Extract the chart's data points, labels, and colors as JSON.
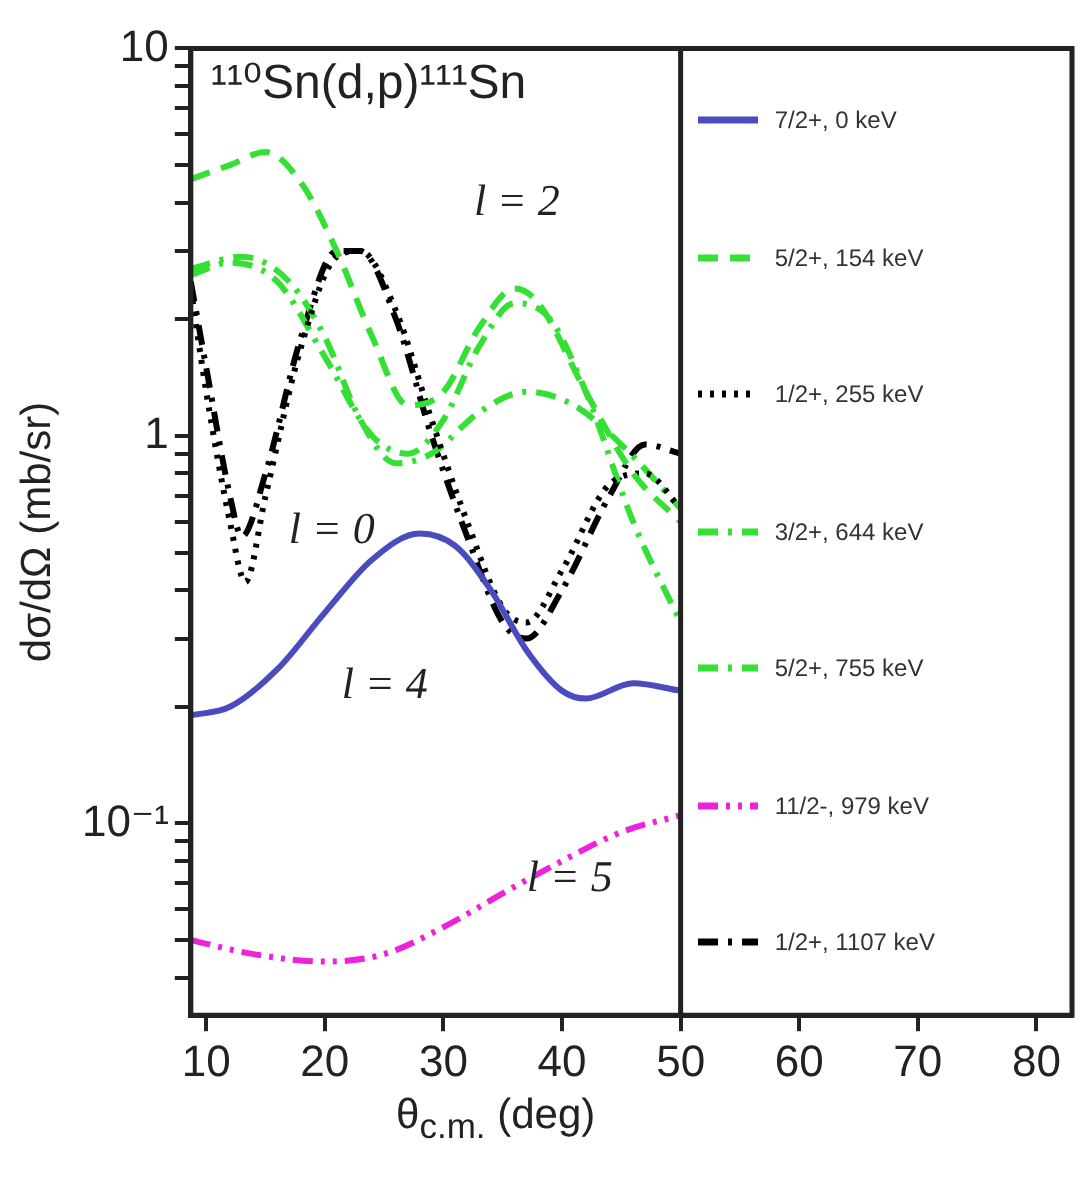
{
  "chart_data": {
    "type": "line",
    "title": "¹¹⁰Sn(d,p)¹¹¹Sn",
    "xlabel": "θ$_{c.m.}$ (deg)",
    "ylabel": "dσ/dΩ (mb/sr)",
    "log": "y",
    "xlim": [
      8.7,
      83
    ],
    "xticks": [
      10,
      20,
      30,
      40,
      50,
      60,
      70,
      80
    ],
    "ylim": [
      0.032,
      10
    ],
    "yticks": [
      {
        "value": 0.04,
        "label": null
      },
      {
        "value": 0.05,
        "label": null
      },
      {
        "value": 0.06,
        "label": null
      },
      {
        "value": 0.07,
        "label": null
      },
      {
        "value": 0.08,
        "label": null
      },
      {
        "value": 0.09,
        "label": null
      },
      {
        "value": 0.1,
        "label": "10⁻¹"
      },
      {
        "value": 0.2,
        "label": null
      },
      {
        "value": 0.3,
        "label": null
      },
      {
        "value": 0.4,
        "label": null
      },
      {
        "value": 0.5,
        "label": null
      },
      {
        "value": 0.6,
        "label": null
      },
      {
        "value": 0.7,
        "label": null
      },
      {
        "value": 0.8,
        "label": null
      },
      {
        "value": 0.9,
        "label": null
      },
      1,
      {
        "value": 2,
        "label": null
      },
      {
        "value": 3,
        "label": null
      },
      {
        "value": 4,
        "label": null
      },
      {
        "value": 5,
        "label": null
      },
      {
        "value": 6,
        "label": null
      },
      {
        "value": 7,
        "label": null
      },
      {
        "value": 8,
        "label": null
      },
      {
        "value": 9,
        "label": null
      },
      10
    ],
    "grid": false,
    "legend": "right",
    "marker": "none",
    "series": [
      {
        "name": "7/2+, 0 keV",
        "color": "#4b4bc0",
        "line_style": "solid",
        "x": [
          8.7,
          12,
          16,
          20,
          24,
          28,
          31,
          34,
          37,
          40,
          42,
          46,
          50
        ],
        "values": [
          0.19,
          0.2,
          0.25,
          0.35,
          0.48,
          0.56,
          0.52,
          0.4,
          0.28,
          0.22,
          0.21,
          0.23,
          0.22
        ]
      },
      {
        "name": "5/2+, 154 keV",
        "color": "#33e033",
        "line_style": "dashed",
        "x": [
          8.7,
          12,
          15,
          18,
          21,
          24,
          27,
          30,
          33,
          36,
          38,
          42,
          46,
          50
        ],
        "values": [
          4.6,
          5,
          5.4,
          4.5,
          3,
          1.8,
          1.2,
          1.3,
          1.9,
          2.4,
          2.2,
          1.3,
          0.8,
          0.6
        ]
      },
      {
        "name": "1/2+, 255 keV",
        "color": "#000000",
        "line_style": "dotted",
        "x": [
          8.7,
          10,
          12,
          13.3,
          15,
          18,
          21,
          23,
          26,
          29,
          32,
          35,
          37,
          40,
          44,
          47,
          50
        ],
        "values": [
          2.4,
          1.3,
          0.6,
          0.42,
          0.7,
          1.7,
          2.9,
          3,
          2.1,
          1.1,
          0.6,
          0.36,
          0.33,
          0.45,
          0.75,
          0.8,
          0.65
        ]
      },
      {
        "name": "3/2+, 644 keV",
        "color": "#33e033",
        "line_style": "dashdot",
        "x": [
          8.7,
          13,
          17,
          20,
          23,
          26,
          29,
          33,
          37,
          41,
          45,
          50
        ],
        "values": [
          2.7,
          2.9,
          2.5,
          1.8,
          1.1,
          0.85,
          0.9,
          1.15,
          1.3,
          1.2,
          0.95,
          0.65
        ]
      },
      {
        "name": "5/2+, 755 keV",
        "color": "#33e033",
        "line_style": "dashdot",
        "x": [
          8.7,
          12,
          16,
          20,
          24,
          27,
          30,
          33,
          36,
          39,
          42,
          46,
          50
        ],
        "values": [
          2.6,
          2.8,
          2.5,
          1.6,
          1,
          0.9,
          1.1,
          1.7,
          2.2,
          2,
          1.3,
          0.6,
          0.33
        ]
      },
      {
        "name": "11/2-, 979 keV",
        "color": "#ee22dd",
        "line_style": "dashdotdot",
        "x": [
          8.7,
          14,
          20,
          25,
          30,
          35,
          40,
          45,
          50
        ],
        "values": [
          0.05,
          0.046,
          0.044,
          0.046,
          0.054,
          0.066,
          0.08,
          0.095,
          0.105
        ]
      },
      {
        "name": "1/2+, 1107 keV",
        "color": "#000000",
        "line_style": "dashdot",
        "x": [
          8.7,
          10,
          12,
          13,
          15,
          18,
          21,
          23,
          26,
          29,
          32,
          35,
          37,
          40,
          44,
          47,
          50
        ],
        "values": [
          2.5,
          1.5,
          0.7,
          0.55,
          0.8,
          1.8,
          3,
          3,
          2,
          1,
          0.55,
          0.33,
          0.3,
          0.4,
          0.7,
          0.95,
          0.9
        ]
      }
    ],
    "ref_lines": [
      {
        "axis": "x",
        "value": 50,
        "color": "#222222"
      }
    ],
    "annotations": [
      "l = 0",
      "l = 2",
      "l = 4",
      "l = 5"
    ]
  }
}
